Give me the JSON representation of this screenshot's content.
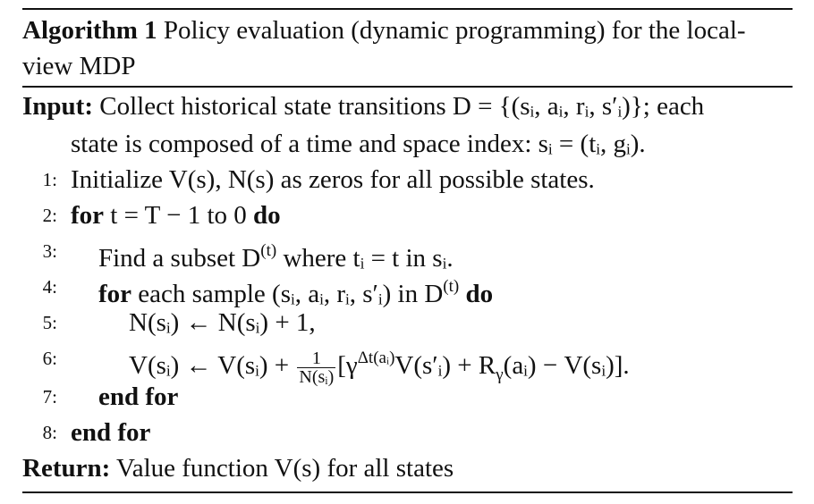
{
  "algorithm": {
    "label": "Algorithm 1",
    "title": "Policy evaluation (dynamic programming) for the local-view MDP",
    "input_label": "Input:",
    "input_text_1": "Collect historical state transitions D = {(sᵢ, aᵢ, rᵢ, s′ᵢ)}; each",
    "input_text_2": "state is composed of a time and space index: sᵢ = (tᵢ, gᵢ).",
    "lines": [
      {
        "num": "1:",
        "text": "Initialize V(s), N(s) as zeros for all possible states."
      },
      {
        "num": "2:",
        "kw1": "for",
        "text": " t = T − 1 to 0 ",
        "kw2": "do"
      },
      {
        "num": "3:",
        "text_a": "Find a subset D",
        "sup": "(t)",
        "text_b": " where tᵢ = t in sᵢ."
      },
      {
        "num": "4:",
        "kw1": "for",
        "text_a": " each sample (sᵢ, aᵢ, rᵢ, s′ᵢ) in D",
        "sup": "(t)",
        "kw2": " do"
      },
      {
        "num": "5:",
        "text": "N(sᵢ) ← N(sᵢ) + 1,"
      },
      {
        "num": "6:",
        "text_a": "V(sᵢ) ← V(sᵢ) + ",
        "frac_top": "1",
        "frac_bot": "N(sᵢ)",
        "text_b": "[γ",
        "sup": "Δt(aᵢ)",
        "text_c": "V(s′ᵢ) + R",
        "sub": "γ",
        "text_d": "(aᵢ) − V(sᵢ)]."
      },
      {
        "num": "7:",
        "kw1": "end for"
      },
      {
        "num": "8:",
        "kw1": "end for"
      }
    ],
    "return_label": "Return:",
    "return_text": "Value function V(s) for all states"
  }
}
